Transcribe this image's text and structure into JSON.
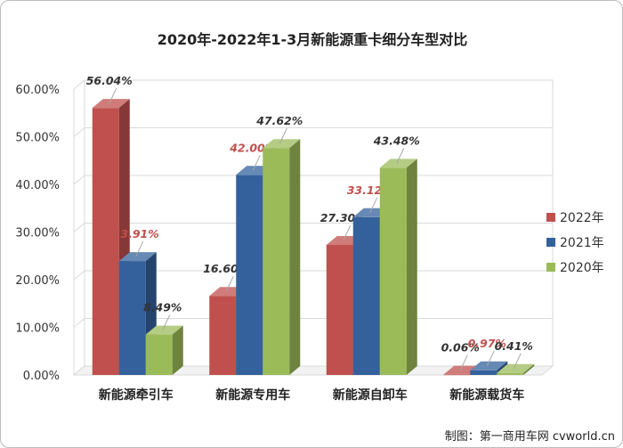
{
  "chart_data": {
    "type": "bar",
    "title": "2020年-2022年1-3月新能源重卡细分车型对比",
    "categories": [
      "新能源牵引车",
      "新能源专用车",
      "新能源自卸车",
      "新能源载货车"
    ],
    "series": [
      {
        "name": "2022年",
        "values": [
          56.04,
          16.6,
          27.3,
          0.06
        ],
        "labels": [
          "56.04%",
          "16.60%",
          "27.30%",
          "0.06%"
        ],
        "color": "#c0504d"
      },
      {
        "name": "2021年",
        "values": [
          23.91,
          42.0,
          33.12,
          0.97
        ],
        "labels": [
          "23.91%",
          "42.00%",
          "33.12%",
          "0.97%"
        ],
        "color": "#34619c"
      },
      {
        "name": "2020年",
        "values": [
          8.49,
          47.62,
          43.48,
          0.41
        ],
        "labels": [
          "8.49%",
          "47.62%",
          "43.48%",
          "0.41%"
        ],
        "color": "#9bbb59"
      }
    ],
    "y_ticks": [
      "0.00%",
      "10.00%",
      "20.00%",
      "30.00%",
      "40.00%",
      "50.00%",
      "60.00%"
    ],
    "ylim": [
      0,
      60
    ],
    "grid": true,
    "legend": "right",
    "highlight_label_color": "#c0504d",
    "xlabel": "",
    "ylabel": ""
  },
  "watermark": "制图：第一商用车网 cvworld.cn"
}
